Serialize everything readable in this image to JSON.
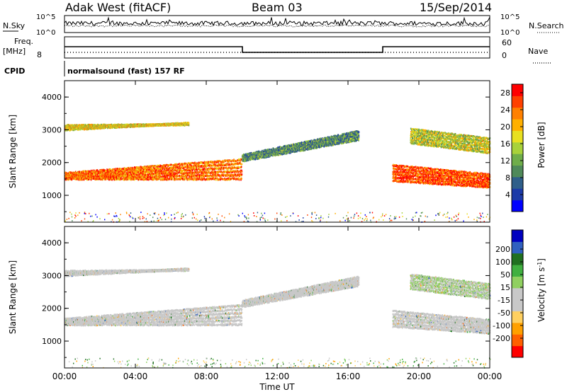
{
  "header": {
    "station": "Adak West (fitACF)",
    "beam": "Beam 03",
    "date": "15/Sep/2014"
  },
  "panels": {
    "nsky_label": "N.Sky",
    "nsearch_label": "N.Search",
    "noise_ticks": [
      "10^5",
      "10^0"
    ],
    "freq_label": "Freq.",
    "freq_unit": "[MHz]",
    "freq_ticks": [
      "8"
    ],
    "nave_label": "Nave",
    "nave_ticks": [
      "60",
      "0"
    ],
    "cpid_label": "CPID",
    "cpid_value": "normalsound (fast) 157 RF"
  },
  "colors": {
    "power_scale": [
      "#0000ff",
      "#1c3aa8",
      "#2f5f8a",
      "#4f8a5a",
      "#6fae4a",
      "#a8d23a",
      "#e8e020",
      "#ffb000",
      "#ff8000",
      "#ff4000",
      "#ff0000"
    ],
    "velocity_scale": [
      "#ff0000",
      "#ff6000",
      "#ffa000",
      "#ffd060",
      "#c8c8c8",
      "#c8c8c8",
      "#90d060",
      "#40b040",
      "#207020",
      "#3060c0",
      "#0000c0"
    ]
  },
  "chart_data": [
    {
      "type": "heatmap",
      "panel": "power",
      "ylabel": "Slant Range [km]",
      "yticks": [
        "1000",
        "2000",
        "3000",
        "4000"
      ],
      "ylim": [
        180,
        4500
      ],
      "xlim": [
        "00:00",
        "24:00"
      ],
      "colorbar_label": "Power [dB]",
      "colorbar_ticks": [
        "4",
        "8",
        "12",
        "16",
        "20",
        "24",
        "28"
      ],
      "colorbar_range": [
        0,
        30
      ],
      "scatter_bands": [
        {
          "t_start": 0.0,
          "t_end": 10.0,
          "range_start": [
            1500,
            1500
          ],
          "range_end": [
            1700,
            2200
          ],
          "value": 24
        },
        {
          "t_start": 0.0,
          "t_end": 7.0,
          "range_start": [
            3000,
            3200
          ],
          "range_end": [
            3150,
            3150
          ],
          "value": 18
        },
        {
          "t_start": 10.0,
          "t_end": 16.6,
          "range_start": [
            2050,
            2700
          ],
          "range_end": [
            2250,
            3000
          ],
          "value": 10
        },
        {
          "t_start": 18.5,
          "t_end": 24.0,
          "range_start": [
            1450,
            1250
          ],
          "range_end": [
            2000,
            1700
          ],
          "value": 26
        },
        {
          "t_start": 19.5,
          "t_end": 24.0,
          "range_start": [
            2600,
            2300
          ],
          "range_end": [
            3100,
            2800
          ],
          "value": 16
        }
      ]
    },
    {
      "type": "heatmap",
      "panel": "velocity",
      "ylabel": "Slant Range [km]",
      "yticks": [
        "1000",
        "2000",
        "3000",
        "4000"
      ],
      "ylim": [
        180,
        4500
      ],
      "xlim": [
        "00:00",
        "24:00"
      ],
      "xticks": [
        "00:00",
        "04:00",
        "08:00",
        "12:00",
        "16:00",
        "20:00",
        "00:00"
      ],
      "xlabel": "Time UT",
      "colorbar_label": "Velocity [m s^-1]",
      "colorbar_ticks": [
        "-200",
        "-100",
        "-50",
        "-15",
        "15",
        "50",
        "100",
        "200"
      ],
      "colorbar_range": [
        -250,
        250
      ],
      "scatter_bands": [
        {
          "t_start": 0.0,
          "t_end": 10.0,
          "range_start": [
            1500,
            1500
          ],
          "range_end": [
            1700,
            2200
          ],
          "value": 0
        },
        {
          "t_start": 0.0,
          "t_end": 7.0,
          "range_start": [
            3000,
            3200
          ],
          "range_end": [
            3150,
            3150
          ],
          "value": 0
        },
        {
          "t_start": 10.0,
          "t_end": 16.6,
          "range_start": [
            2050,
            2700
          ],
          "range_end": [
            2250,
            3000
          ],
          "value": 0
        },
        {
          "t_start": 18.5,
          "t_end": 24.0,
          "range_start": [
            1450,
            1250
          ],
          "range_end": [
            2000,
            1700
          ],
          "value": 0
        },
        {
          "t_start": 19.5,
          "t_end": 24.0,
          "range_start": [
            2600,
            2300
          ],
          "range_end": [
            3100,
            2800
          ],
          "value": 20
        }
      ]
    }
  ]
}
